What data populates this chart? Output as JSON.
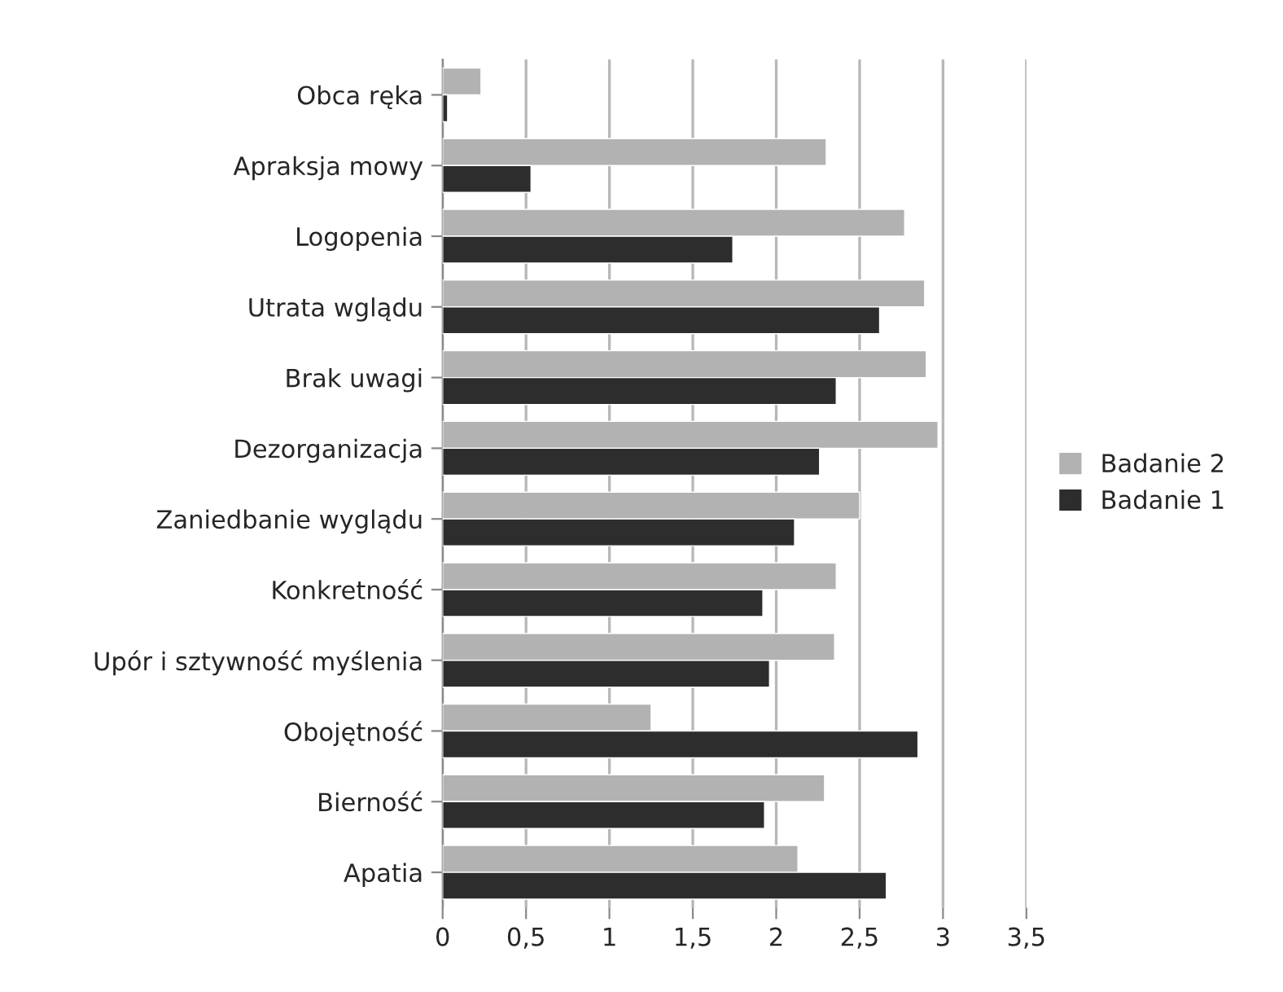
{
  "chart_data": {
    "type": "bar",
    "orientation": "horizontal",
    "categories": [
      "Obca ręka",
      "Apraksja mowy",
      "Logopenia",
      "Utrata wglądu",
      "Brak uwagi",
      "Dezorganizacja",
      "Zaniedbanie wyglądu",
      "Konkretność",
      "Upór i sztywność myślenia",
      "Obojętność",
      "Bierność",
      "Apatia"
    ],
    "series": [
      {
        "name": "Badanie 2",
        "color": "#b2b2b2",
        "values": [
          0.23,
          2.3,
          2.77,
          2.89,
          2.9,
          2.97,
          2.5,
          2.36,
          2.35,
          1.25,
          2.29,
          2.13
        ]
      },
      {
        "name": "Badanie 1",
        "color": "#2d2d2d",
        "values": [
          0.03,
          0.53,
          1.74,
          2.62,
          2.36,
          2.26,
          2.11,
          1.92,
          1.96,
          2.85,
          1.93,
          2.66
        ]
      }
    ],
    "xlim": [
      0,
      3.5
    ],
    "xticks": [
      0,
      {
        "value": 0.5,
        "label": "0,5"
      },
      1,
      {
        "value": 1.5,
        "label": "1,5"
      },
      2,
      {
        "value": 2.5,
        "label": "2,5"
      },
      3,
      {
        "value": 3.5,
        "label": "3,5"
      }
    ],
    "grid": "x",
    "legend": "right"
  }
}
